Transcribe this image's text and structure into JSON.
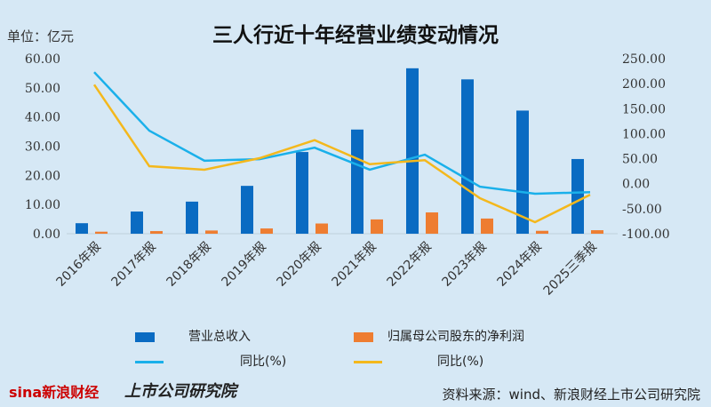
{
  "chart_data": {
    "type": "bar",
    "title": "三人行近十年经营业绩变动情况",
    "unit_label": "单位：亿元",
    "categories": [
      "2016年报",
      "2017年报",
      "2018年报",
      "2019年报",
      "2020年报",
      "2021年报",
      "2022年报",
      "2023年报",
      "2024年报",
      "2025三季报"
    ],
    "y_left": {
      "range": [
        0,
        60
      ],
      "ticks": [
        "0.00",
        "10.00",
        "20.00",
        "30.00",
        "40.00",
        "50.00",
        "60.00"
      ]
    },
    "y_right": {
      "range": [
        -100,
        250
      ],
      "ticks": [
        "-100.00",
        "-50.00",
        "0.00",
        "50.00",
        "100.00",
        "150.00",
        "200.00",
        "250.00"
      ]
    },
    "grid": false,
    "legend_placement": "bottom",
    "series": [
      {
        "name": "营业总收入",
        "kind": "bar",
        "axis": "left",
        "color": "#0a6bc2",
        "values": [
          3.6,
          7.6,
          11.0,
          16.4,
          28.0,
          35.7,
          56.7,
          52.9,
          42.2,
          25.6
        ]
      },
      {
        "name": "归属母公司股东的净利润",
        "kind": "bar",
        "axis": "left",
        "color": "#ee7d31",
        "values": [
          0.7,
          0.9,
          1.1,
          1.8,
          3.5,
          4.9,
          7.3,
          5.2,
          1.0,
          1.2
        ]
      },
      {
        "name": "同比(%)",
        "kind": "line",
        "axis": "right",
        "color": "#1ab0ea",
        "values": [
          223,
          106,
          46,
          49,
          72,
          28,
          58,
          -6,
          -20,
          -17
        ]
      },
      {
        "name": "同比(%)",
        "kind": "line",
        "axis": "right",
        "color": "#f4b81c",
        "values": [
          198,
          35,
          28,
          51,
          87,
          39,
          47,
          -29,
          -77,
          -22
        ]
      }
    ]
  },
  "footer": {
    "source": "资料来源：wind、新浪财经上市公司研究院",
    "logo_sina": "sina新浪财经",
    "logo_institute": "上市公司研究院"
  }
}
